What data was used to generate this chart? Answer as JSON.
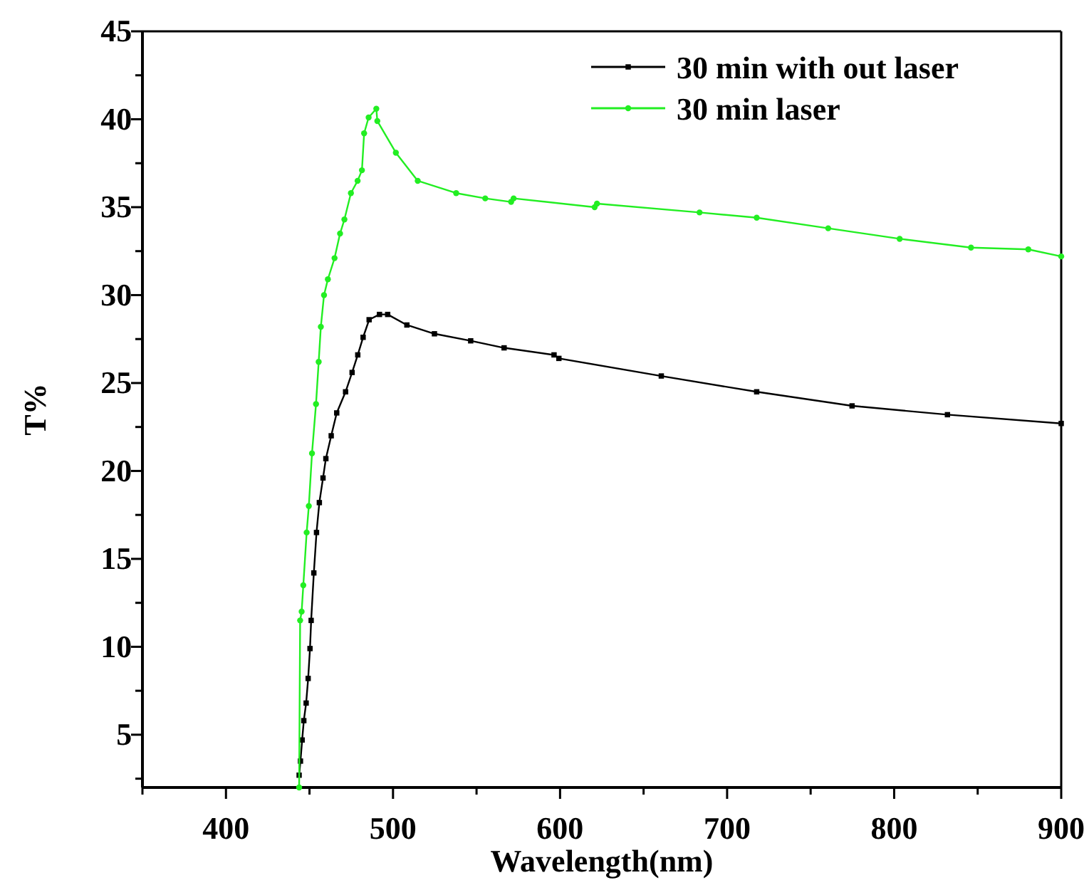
{
  "chart_data": {
    "type": "line",
    "xlabel": "Wavelength(nm)",
    "ylabel": "T%",
    "xlim": [
      350,
      900
    ],
    "xticks": [
      {
        "value": 350,
        "label": null
      },
      400,
      {
        "value": 450,
        "label": null
      },
      500,
      {
        "value": 550,
        "label": null
      },
      600,
      {
        "value": 650,
        "label": null
      },
      700,
      {
        "value": 750,
        "label": null
      },
      800,
      {
        "value": 850,
        "label": null
      },
      900
    ],
    "ylim": [
      2,
      45
    ],
    "yticks": [
      {
        "value": 2.5,
        "label": null
      },
      5,
      {
        "value": 7.5,
        "label": null
      },
      10,
      {
        "value": 12.5,
        "label": null
      },
      15,
      {
        "value": 17.5,
        "label": null
      },
      20,
      {
        "value": 22.5,
        "label": null
      },
      25,
      {
        "value": 27.5,
        "label": null
      },
      30,
      {
        "value": 32.5,
        "label": null
      },
      35,
      {
        "value": 37.5,
        "label": null
      },
      40,
      {
        "value": 42.5,
        "label": null
      },
      45
    ],
    "legend": "top right",
    "grid": false,
    "line_style": "solid",
    "series": [
      {
        "name": "30 min with out laser",
        "color": "#000000",
        "marker": "square",
        "x": [
          443.8,
          444.6,
          445.6,
          446.6,
          448.0,
          449.2,
          450.3,
          451.0,
          452.6,
          454.2,
          455.9,
          458.1,
          459.8,
          463.0,
          466.3,
          471.6,
          475.5,
          478.9,
          482.1,
          485.7,
          491.9,
          496.8,
          508.3,
          524.8,
          546.5,
          566.5,
          596.4,
          599.3,
          660.6,
          717.7,
          774.8,
          831.9,
          900
        ],
        "values": [
          2.7,
          3.5,
          4.7,
          5.8,
          6.8,
          8.2,
          9.9,
          11.5,
          14.2,
          16.5,
          18.2,
          19.6,
          20.7,
          22.0,
          23.3,
          24.5,
          25.6,
          26.6,
          27.6,
          28.6,
          28.9,
          28.9,
          28.3,
          27.8,
          27.4,
          27.0,
          26.6,
          26.4,
          25.4,
          24.5,
          23.7,
          23.2,
          22.7
        ]
      },
      {
        "name": "30 min laser",
        "color": "#22ee22",
        "marker": "circle",
        "x": [
          443.8,
          444.4,
          445.3,
          446.3,
          448.3,
          449.6,
          451.5,
          453.9,
          455.5,
          456.8,
          458.7,
          461.0,
          465.0,
          468.3,
          470.9,
          474.8,
          478.8,
          481.4,
          482.7,
          485.4,
          490.0,
          490.6,
          501.7,
          514.8,
          537.8,
          555.2,
          570.7,
          572.2,
          620.7,
          622.1,
          683.5,
          717.7,
          760.5,
          803.3,
          846.0,
          880.3,
          900
        ],
        "values": [
          2,
          11.5,
          12.0,
          13.5,
          16.5,
          18.0,
          21.0,
          23.8,
          26.2,
          28.2,
          30.0,
          30.9,
          32.1,
          33.5,
          34.3,
          35.8,
          36.5,
          37.1,
          39.2,
          40.1,
          40.6,
          39.9,
          38.1,
          36.5,
          35.8,
          35.5,
          35.3,
          35.5,
          35.0,
          35.2,
          34.7,
          34.4,
          33.8,
          33.2,
          32.7,
          32.6,
          32.2
        ]
      }
    ]
  }
}
